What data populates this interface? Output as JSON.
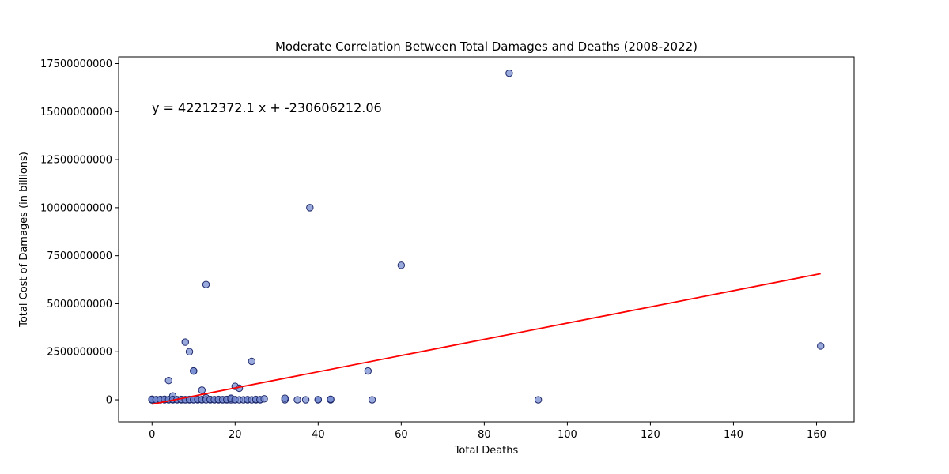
{
  "chart_data": {
    "type": "scatter",
    "title": "Moderate Correlation Between Total Damages and Deaths (2008-2022)",
    "xlabel": "Total Deaths",
    "ylabel": "Total Cost of Damages (in billions)",
    "xlim": [
      -8.05,
      169.05
    ],
    "ylim": [
      -1150000000,
      17850000000
    ],
    "xticks": [
      0,
      20,
      40,
      60,
      80,
      100,
      120,
      140,
      160
    ],
    "yticks": [
      0,
      2500000000,
      5000000000,
      7500000000,
      10000000000,
      12500000000,
      15000000000,
      17500000000
    ],
    "xtick_labels": [
      "0",
      "20",
      "40",
      "60",
      "80",
      "100",
      "120",
      "140",
      "160"
    ],
    "ytick_labels": [
      "0",
      "2500000000",
      "5000000000",
      "7500000000",
      "10000000000",
      "12500000000",
      "15000000000",
      "17500000000"
    ],
    "grid": false,
    "annotation": "y = 42212372.1 x + -230606212.06",
    "regression": {
      "slope": 42212372.1,
      "intercept": -230606212.06,
      "x_range": [
        0,
        161
      ],
      "color": "#ff0000"
    },
    "point_color": "#6f86cf",
    "point_edge_color": "#1f2a6b",
    "points": [
      [
        0,
        0
      ],
      [
        0,
        10000000
      ],
      [
        0,
        30000000
      ],
      [
        0,
        5000000
      ],
      [
        0,
        0
      ],
      [
        0,
        20000000
      ],
      [
        0,
        0
      ],
      [
        0,
        15000000
      ],
      [
        1,
        0
      ],
      [
        1,
        10000000
      ],
      [
        1,
        0
      ],
      [
        2,
        0
      ],
      [
        2,
        20000000
      ],
      [
        2,
        5000000
      ],
      [
        3,
        0
      ],
      [
        3,
        30000000
      ],
      [
        4,
        0
      ],
      [
        4,
        1000000000
      ],
      [
        4,
        10000000
      ],
      [
        5,
        200000000
      ],
      [
        5,
        0
      ],
      [
        5,
        20000000
      ],
      [
        6,
        0
      ],
      [
        6,
        10000000
      ],
      [
        7,
        0
      ],
      [
        7,
        20000000
      ],
      [
        8,
        0
      ],
      [
        8,
        3000000000
      ],
      [
        8,
        10000000
      ],
      [
        9,
        2500000000
      ],
      [
        9,
        0
      ],
      [
        9,
        20000000
      ],
      [
        10,
        1500000000
      ],
      [
        10,
        1500000000
      ],
      [
        10,
        0
      ],
      [
        10,
        10000000
      ],
      [
        11,
        0
      ],
      [
        11,
        20000000
      ],
      [
        12,
        500000000
      ],
      [
        12,
        0
      ],
      [
        12,
        10000000
      ],
      [
        13,
        6000000000
      ],
      [
        13,
        100000000
      ],
      [
        13,
        0
      ],
      [
        14,
        0
      ],
      [
        14,
        20000000
      ],
      [
        15,
        0
      ],
      [
        15,
        10000000
      ],
      [
        16,
        0
      ],
      [
        16,
        20000000
      ],
      [
        17,
        0
      ],
      [
        17,
        10000000
      ],
      [
        18,
        0
      ],
      [
        18,
        20000000
      ],
      [
        19,
        50000000
      ],
      [
        19,
        0
      ],
      [
        19,
        80000000
      ],
      [
        20,
        700000000
      ],
      [
        20,
        0
      ],
      [
        20,
        10000000
      ],
      [
        21,
        600000000
      ],
      [
        21,
        0
      ],
      [
        22,
        0
      ],
      [
        23,
        0
      ],
      [
        23,
        10000000
      ],
      [
        24,
        2000000000
      ],
      [
        24,
        0
      ],
      [
        25,
        0
      ],
      [
        25,
        20000000
      ],
      [
        26,
        0
      ],
      [
        26,
        10000000
      ],
      [
        27,
        50000000
      ],
      [
        32,
        0
      ],
      [
        32,
        80000000
      ],
      [
        35,
        0
      ],
      [
        37,
        0
      ],
      [
        38,
        10000000000
      ],
      [
        40,
        0
      ],
      [
        40,
        10000000
      ],
      [
        43,
        0
      ],
      [
        43,
        30000000
      ],
      [
        52,
        1500000000
      ],
      [
        53,
        0
      ],
      [
        60,
        7000000000
      ],
      [
        86,
        17000000000
      ],
      [
        93,
        0
      ],
      [
        161,
        2800000000
      ]
    ]
  }
}
